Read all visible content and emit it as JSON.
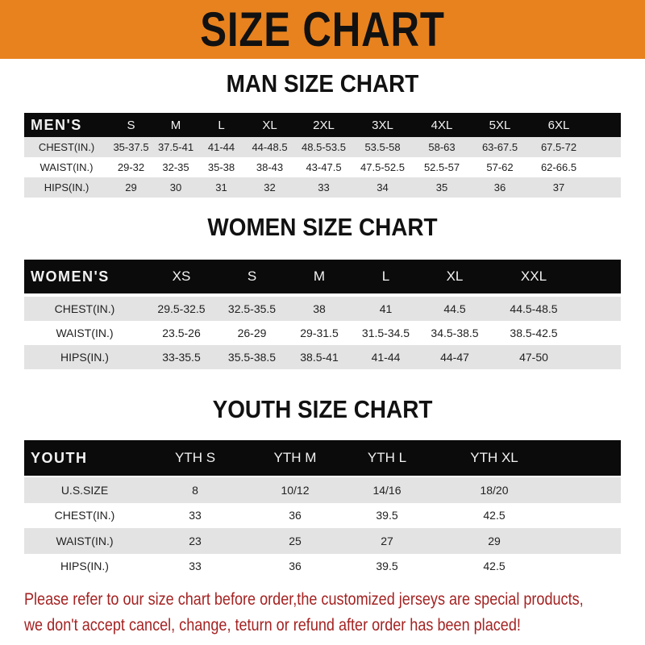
{
  "banner": {
    "title": "SIZE CHART",
    "color": "#e8821e"
  },
  "men": {
    "title": "MAN SIZE CHART",
    "header": [
      "MEN'S",
      "S",
      "M",
      "L",
      "XL",
      "2XL",
      "3XL",
      "4XL",
      "5XL",
      "6XL"
    ],
    "rows": [
      [
        "CHEST(IN.)",
        "35-37.5",
        "37.5-41",
        "41-44",
        "44-48.5",
        "48.5-53.5",
        "53.5-58",
        "58-63",
        "63-67.5",
        "67.5-72"
      ],
      [
        "WAIST(IN.)",
        "29-32",
        "32-35",
        "35-38",
        "38-43",
        "43-47.5",
        "47.5-52.5",
        "52.5-57",
        "57-62",
        "62-66.5"
      ],
      [
        "HIPS(IN.)",
        "29",
        "30",
        "31",
        "32",
        "33",
        "34",
        "35",
        "36",
        "37"
      ]
    ]
  },
  "women": {
    "title": "WOMEN SIZE CHART",
    "header": [
      "WOMEN'S",
      "XS",
      "S",
      "M",
      "L",
      "XL",
      "XXL"
    ],
    "rows": [
      [
        "CHEST(IN.)",
        "29.5-32.5",
        "32.5-35.5",
        "38",
        "41",
        "44.5",
        "44.5-48.5"
      ],
      [
        "WAIST(IN.)",
        "23.5-26",
        "26-29",
        "29-31.5",
        "31.5-34.5",
        "34.5-38.5",
        "38.5-42.5"
      ],
      [
        "HIPS(IN.)",
        "33-35.5",
        "35.5-38.5",
        "38.5-41",
        "41-44",
        "44-47",
        "47-50"
      ]
    ]
  },
  "youth": {
    "title": "YOUTH SIZE CHART",
    "header": [
      "YOUTH",
      "YTH S",
      "YTH M",
      "YTH L",
      "YTH XL"
    ],
    "rows": [
      [
        "U.S.SIZE",
        "8",
        "10/12",
        "14/16",
        "18/20"
      ],
      [
        "CHEST(IN.)",
        "33",
        "36",
        "39.5",
        "42.5"
      ],
      [
        "WAIST(IN.)",
        "23",
        "25",
        "27",
        "29"
      ],
      [
        "HIPS(IN.)",
        "33",
        "36",
        "39.5",
        "42.5"
      ]
    ]
  },
  "note": {
    "line1": "Please refer to our size chart before order,the customized jerseys are special products,",
    "line2": "we don't accept cancel, change, teturn or refund after order has been placed!",
    "color": "#a52222"
  }
}
